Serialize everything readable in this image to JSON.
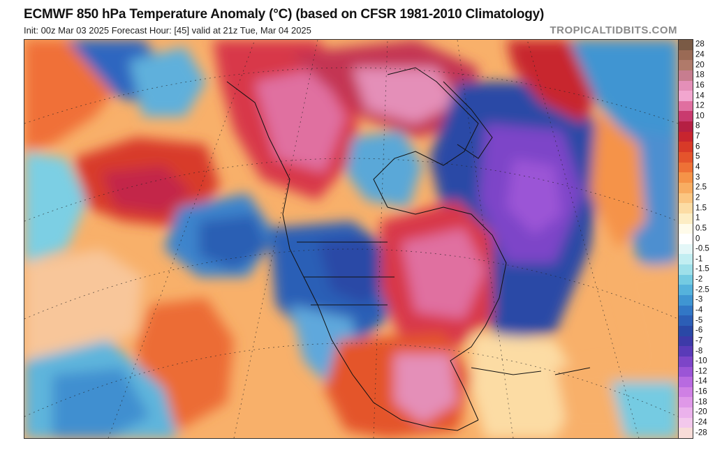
{
  "header": {
    "title": "ECMWF 850 hPa Temperature Anomaly (°C) (based on CFSR 1981-2010 Climatology)",
    "subtitle": "Init: 00z Mar 03 2025   Forecast Hour: [45]   valid at 21z Tue, Mar 04 2025",
    "brand": "TROPICALTIDBITS.COM"
  },
  "legend": {
    "entries": [
      {
        "label": "28",
        "color": "#7a5a45"
      },
      {
        "label": "24",
        "color": "#9a6a55"
      },
      {
        "label": "20",
        "color": "#b07a6a"
      },
      {
        "label": "18",
        "color": "#c77d8f"
      },
      {
        "label": "16",
        "color": "#e48fb8"
      },
      {
        "label": "14",
        "color": "#f2a6cf"
      },
      {
        "label": "12",
        "color": "#e06fa0"
      },
      {
        "label": "10",
        "color": "#c93a6e"
      },
      {
        "label": "8",
        "color": "#b51f43"
      },
      {
        "label": "7",
        "color": "#c8252f"
      },
      {
        "label": "6",
        "color": "#d83a28"
      },
      {
        "label": "5",
        "color": "#e4542c"
      },
      {
        "label": "4",
        "color": "#ee7136"
      },
      {
        "label": "3",
        "color": "#f59348"
      },
      {
        "label": "2.5",
        "color": "#f8ad62"
      },
      {
        "label": "2",
        "color": "#fbc682"
      },
      {
        "label": "1.5",
        "color": "#fcdca4"
      },
      {
        "label": "1",
        "color": "#fdedc4"
      },
      {
        "label": "0.5",
        "color": "#fffbea"
      },
      {
        "label": "0",
        "color": "#ffffff"
      },
      {
        "label": "-0.5",
        "color": "#e4f7f8"
      },
      {
        "label": "-1",
        "color": "#c2eef2"
      },
      {
        "label": "-1.5",
        "color": "#9ee0ea"
      },
      {
        "label": "-2",
        "color": "#74cbe2"
      },
      {
        "label": "-2.5",
        "color": "#55b2dc"
      },
      {
        "label": "-3",
        "color": "#3f95d2"
      },
      {
        "label": "-4",
        "color": "#3277c6"
      },
      {
        "label": "-5",
        "color": "#2c5eb6"
      },
      {
        "label": "-6",
        "color": "#2a48a6"
      },
      {
        "label": "-7",
        "color": "#3d3aa8"
      },
      {
        "label": "-8",
        "color": "#5a3bb8"
      },
      {
        "label": "-10",
        "color": "#7d45c8"
      },
      {
        "label": "-12",
        "color": "#9b55d6"
      },
      {
        "label": "-14",
        "color": "#b86ae0"
      },
      {
        "label": "-16",
        "color": "#cf80e4"
      },
      {
        "label": "-18",
        "color": "#df98e8"
      },
      {
        "label": "-20",
        "color": "#ebb2ec"
      },
      {
        "label": "-24",
        "color": "#f3c8ec"
      },
      {
        "label": "-28",
        "color": "#f8dcd8"
      }
    ]
  }
}
